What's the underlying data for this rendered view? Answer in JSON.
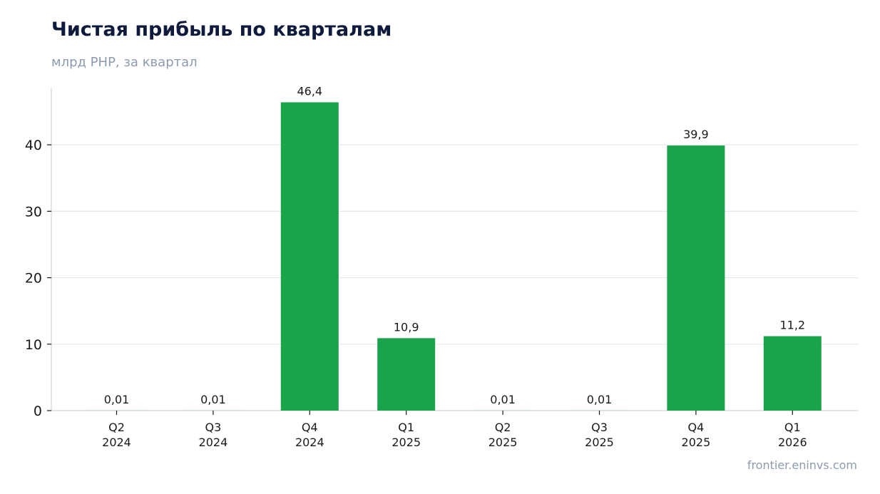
{
  "chart_data": {
    "type": "bar",
    "title": "Чистая прибыль по кварталам",
    "subtitle": "млрд PHP, за квартал",
    "categories": [
      [
        "Q2",
        "2024"
      ],
      [
        "Q3",
        "2024"
      ],
      [
        "Q4",
        "2024"
      ],
      [
        "Q1",
        "2025"
      ],
      [
        "Q2",
        "2025"
      ],
      [
        "Q3",
        "2025"
      ],
      [
        "Q4",
        "2025"
      ],
      [
        "Q1",
        "2026"
      ]
    ],
    "values": [
      0.01,
      0.01,
      46.4,
      10.9,
      0.01,
      0.01,
      39.9,
      11.2
    ],
    "value_labels": [
      "0,01",
      "0,01",
      "46,4",
      "10,9",
      "0,01",
      "0,01",
      "39,9",
      "11,2"
    ],
    "yticks": [
      0,
      10,
      20,
      30,
      40
    ],
    "ylim": [
      0,
      48.6
    ],
    "grid": true,
    "bar_color": "#19a34a",
    "grid_color": "#e3e7ee",
    "axis_color": "#cdd3dc"
  },
  "source": "frontier.eninvs.com"
}
